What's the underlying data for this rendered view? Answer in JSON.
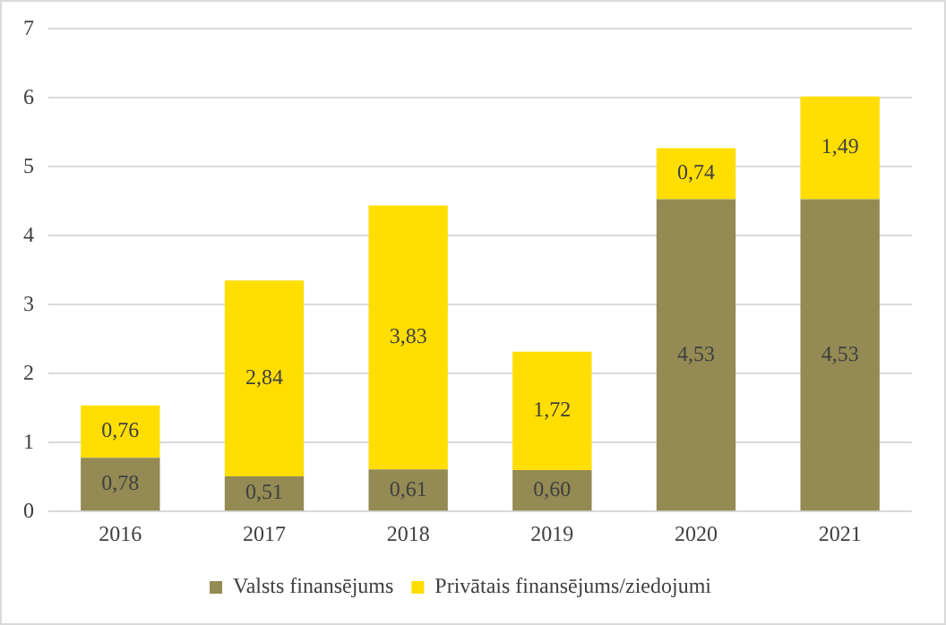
{
  "chart_data": {
    "type": "bar",
    "stacked": true,
    "categories": [
      "2016",
      "2017",
      "2018",
      "2019",
      "2020",
      "2021"
    ],
    "series": [
      {
        "name": "Valsts finansējums",
        "color": "#948a54",
        "values": [
          0.78,
          0.51,
          0.61,
          0.6,
          4.53,
          4.53
        ],
        "value_labels": [
          "0,78",
          "0,51",
          "0,61",
          "0,60",
          "4,53",
          "4,53"
        ]
      },
      {
        "name": "Privātais finansējums/ziedojumi",
        "color": "#ffde00",
        "values": [
          0.76,
          2.84,
          3.83,
          1.72,
          0.74,
          1.49
        ],
        "value_labels": [
          "0,76",
          "2,84",
          "3,83",
          "1,72",
          "0,74",
          "1,49"
        ]
      }
    ],
    "ylim": [
      0,
      7
    ],
    "yticks": [
      0,
      1,
      2,
      3,
      4,
      5,
      6,
      7
    ],
    "grid": "y",
    "legend": "bottom"
  }
}
